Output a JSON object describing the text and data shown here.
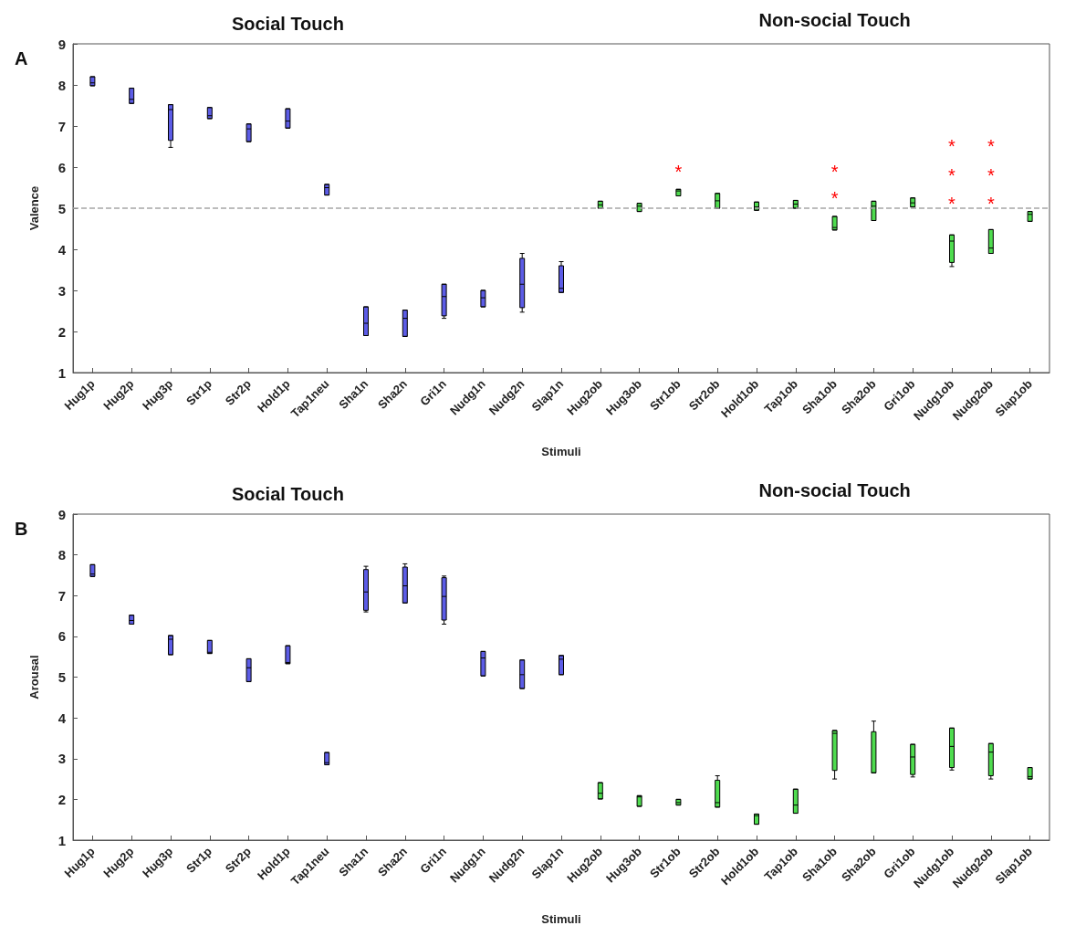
{
  "chart_data": [
    {
      "type": "box",
      "xlabel": "Stimuli",
      "ylabel": "Valence",
      "categories": [
        "Hug1p",
        "Hug2p",
        "Hug3p",
        "Str1p",
        "Str2p",
        "Hold1p",
        "Tap1neu",
        "Sha1n",
        "Sha2n",
        "Gri1n",
        "Nudg1n",
        "Nudg2n",
        "Slap1n",
        "Hug2ob",
        "Hug3ob",
        "Str1ob",
        "Str2ob",
        "Hold1ob",
        "Tap1ob",
        "Sha1ob",
        "Sha2ob",
        "Gri1ob",
        "Nudg1ob",
        "Nudg2ob",
        "Slap1ob"
      ],
      "boxes": [
        {
          "low": 7.98,
          "q1": 7.98,
          "median": 8.05,
          "q3": 8.2,
          "high": 8.2
        },
        {
          "low": 7.55,
          "q1": 7.55,
          "median": 7.65,
          "q3": 7.92,
          "high": 7.92
        },
        {
          "low": 6.48,
          "q1": 6.65,
          "median": 7.4,
          "q3": 7.52,
          "high": 7.52
        },
        {
          "low": 7.18,
          "q1": 7.18,
          "median": 7.25,
          "q3": 7.45,
          "high": 7.45
        },
        {
          "low": 6.62,
          "q1": 6.62,
          "median": 6.93,
          "q3": 7.05,
          "high": 7.05
        },
        {
          "low": 6.95,
          "q1": 6.95,
          "median": 7.12,
          "q3": 7.42,
          "high": 7.42
        },
        {
          "low": 5.32,
          "q1": 5.32,
          "median": 5.5,
          "q3": 5.58,
          "high": 5.58
        },
        {
          "low": 1.9,
          "q1": 1.9,
          "median": 2.2,
          "q3": 2.6,
          "high": 2.6
        },
        {
          "low": 1.88,
          "q1": 1.88,
          "median": 2.32,
          "q3": 2.52,
          "high": 2.52
        },
        {
          "low": 2.32,
          "q1": 2.38,
          "median": 2.85,
          "q3": 3.15,
          "high": 3.15
        },
        {
          "low": 2.6,
          "q1": 2.6,
          "median": 2.82,
          "q3": 3.0,
          "high": 3.0
        },
        {
          "low": 2.47,
          "q1": 2.58,
          "median": 3.15,
          "q3": 3.78,
          "high": 3.9
        },
        {
          "low": 2.95,
          "q1": 2.95,
          "median": 3.05,
          "q3": 3.6,
          "high": 3.7
        },
        {
          "low": 5.0,
          "q1": 5.0,
          "median": 5.08,
          "q3": 5.17,
          "high": 5.17
        },
        {
          "low": 4.92,
          "q1": 4.92,
          "median": 5.05,
          "q3": 5.12,
          "high": 5.12
        },
        {
          "low": 5.3,
          "q1": 5.3,
          "median": 5.42,
          "q3": 5.46,
          "high": 5.46
        },
        {
          "low": 5.0,
          "q1": 5.0,
          "median": 5.18,
          "q3": 5.36,
          "high": 5.36
        },
        {
          "low": 4.95,
          "q1": 4.95,
          "median": 5.03,
          "q3": 5.15,
          "high": 5.15
        },
        {
          "low": 5.0,
          "q1": 5.0,
          "median": 5.1,
          "q3": 5.19,
          "high": 5.19
        },
        {
          "low": 4.47,
          "q1": 4.47,
          "median": 4.53,
          "q3": 4.8,
          "high": 4.8
        },
        {
          "low": 4.7,
          "q1": 4.7,
          "median": 5.05,
          "q3": 5.17,
          "high": 5.17
        },
        {
          "low": 5.03,
          "q1": 5.03,
          "median": 5.13,
          "q3": 5.25,
          "high": 5.25
        },
        {
          "low": 3.58,
          "q1": 3.68,
          "median": 4.2,
          "q3": 4.35,
          "high": 4.35
        },
        {
          "low": 3.9,
          "q1": 3.9,
          "median": 4.03,
          "q3": 4.48,
          "high": 4.48
        },
        {
          "low": 4.68,
          "q1": 4.68,
          "median": 4.85,
          "q3": 4.92,
          "high": 4.92
        }
      ],
      "colors": [
        "#5c5ce6",
        "#5c5ce6",
        "#5c5ce6",
        "#5c5ce6",
        "#5c5ce6",
        "#5c5ce6",
        "#5c5ce6",
        "#5c5ce6",
        "#5c5ce6",
        "#5c5ce6",
        "#5c5ce6",
        "#5c5ce6",
        "#5c5ce6",
        "#4fdc4f",
        "#4fdc4f",
        "#4fdc4f",
        "#4fdc4f",
        "#4fdc4f",
        "#4fdc4f",
        "#4fdc4f",
        "#4fdc4f",
        "#4fdc4f",
        "#4fdc4f",
        "#4fdc4f",
        "#4fdc4f"
      ],
      "ylim": [
        1,
        9
      ],
      "yticks": [
        1,
        2,
        3,
        4,
        5,
        6,
        7,
        8,
        9
      ],
      "grid": false,
      "ref_lines": [
        {
          "axis": "y",
          "value": 5,
          "color": "#a6a6a6",
          "line_style": "dashed"
        }
      ],
      "annotations": [
        "A",
        "Social Touch",
        "Non-social Touch",
        "*",
        "*",
        "*",
        "*",
        "*",
        "*",
        "*",
        "*",
        "*"
      ]
    },
    {
      "type": "box",
      "xlabel": "Stimuli",
      "ylabel": "Arousal",
      "categories": [
        "Hug1p",
        "Hug2p",
        "Hug3p",
        "Str1p",
        "Str2p",
        "Hold1p",
        "Tap1neu",
        "Sha1n",
        "Sha2n",
        "Gri1n",
        "Nudg1n",
        "Nudg2n",
        "Slap1n",
        "Hug2ob",
        "Hug3ob",
        "Str1ob",
        "Str2ob",
        "Hold1ob",
        "Tap1ob",
        "Sha1ob",
        "Sha2ob",
        "Gri1ob",
        "Nudg1ob",
        "Nudg2ob",
        "Slap1ob"
      ],
      "boxes": [
        {
          "low": 7.47,
          "q1": 7.47,
          "median": 7.53,
          "q3": 7.76,
          "high": 7.76
        },
        {
          "low": 6.3,
          "q1": 6.3,
          "median": 6.39,
          "q3": 6.52,
          "high": 6.52
        },
        {
          "low": 5.55,
          "q1": 5.55,
          "median": 5.93,
          "q3": 6.02,
          "high": 6.02
        },
        {
          "low": 5.58,
          "q1": 5.58,
          "median": 5.61,
          "q3": 5.9,
          "high": 5.9
        },
        {
          "low": 4.89,
          "q1": 4.89,
          "median": 5.23,
          "q3": 5.45,
          "high": 5.45
        },
        {
          "low": 5.33,
          "q1": 5.33,
          "median": 5.36,
          "q3": 5.77,
          "high": 5.77
        },
        {
          "low": 2.85,
          "q1": 2.85,
          "median": 2.9,
          "q3": 3.15,
          "high": 3.15
        },
        {
          "low": 6.6,
          "q1": 6.64,
          "median": 7.09,
          "q3": 7.64,
          "high": 7.72
        },
        {
          "low": 6.82,
          "q1": 6.82,
          "median": 7.24,
          "q3": 7.7,
          "high": 7.78
        },
        {
          "low": 6.3,
          "q1": 6.4,
          "median": 6.98,
          "q3": 7.44,
          "high": 7.48
        },
        {
          "low": 5.03,
          "q1": 5.03,
          "median": 5.47,
          "q3": 5.63,
          "high": 5.63
        },
        {
          "low": 4.72,
          "q1": 4.72,
          "median": 5.06,
          "q3": 5.42,
          "high": 5.42
        },
        {
          "low": 5.06,
          "q1": 5.06,
          "median": 5.44,
          "q3": 5.53,
          "high": 5.53
        },
        {
          "low": 2.01,
          "q1": 2.01,
          "median": 2.15,
          "q3": 2.41,
          "high": 2.41
        },
        {
          "low": 1.83,
          "q1": 1.83,
          "median": 2.06,
          "q3": 2.09,
          "high": 2.09
        },
        {
          "low": 1.86,
          "q1": 1.86,
          "median": 1.92,
          "q3": 2.0,
          "high": 2.0
        },
        {
          "low": 1.81,
          "q1": 1.81,
          "median": 1.92,
          "q3": 2.47,
          "high": 2.58
        },
        {
          "low": 1.39,
          "q1": 1.39,
          "median": 1.6,
          "q3": 1.64,
          "high": 1.64
        },
        {
          "low": 1.66,
          "q1": 1.66,
          "median": 1.86,
          "q3": 2.25,
          "high": 2.25
        },
        {
          "low": 2.5,
          "q1": 2.71,
          "median": 3.62,
          "q3": 3.69,
          "high": 3.69
        },
        {
          "low": 2.65,
          "q1": 2.65,
          "median": 2.65,
          "q3": 3.66,
          "high": 3.92
        },
        {
          "low": 2.55,
          "q1": 2.61,
          "median": 3.04,
          "q3": 3.35,
          "high": 3.35
        },
        {
          "low": 2.72,
          "q1": 2.78,
          "median": 3.3,
          "q3": 3.75,
          "high": 3.75
        },
        {
          "low": 2.5,
          "q1": 2.58,
          "median": 3.16,
          "q3": 3.37,
          "high": 3.37
        },
        {
          "low": 2.5,
          "q1": 2.5,
          "median": 2.56,
          "q3": 2.78,
          "high": 2.78
        }
      ],
      "colors": [
        "#5c5ce6",
        "#5c5ce6",
        "#5c5ce6",
        "#5c5ce6",
        "#5c5ce6",
        "#5c5ce6",
        "#5c5ce6",
        "#5c5ce6",
        "#5c5ce6",
        "#5c5ce6",
        "#5c5ce6",
        "#5c5ce6",
        "#5c5ce6",
        "#4fdc4f",
        "#4fdc4f",
        "#4fdc4f",
        "#4fdc4f",
        "#4fdc4f",
        "#4fdc4f",
        "#4fdc4f",
        "#4fdc4f",
        "#4fdc4f",
        "#4fdc4f",
        "#4fdc4f",
        "#4fdc4f"
      ],
      "ylim": [
        1,
        9
      ],
      "yticks": [
        1,
        2,
        3,
        4,
        5,
        6,
        7,
        8,
        9
      ],
      "grid": false,
      "annotations": [
        "B",
        "Social Touch",
        "Non-social Touch"
      ]
    }
  ]
}
